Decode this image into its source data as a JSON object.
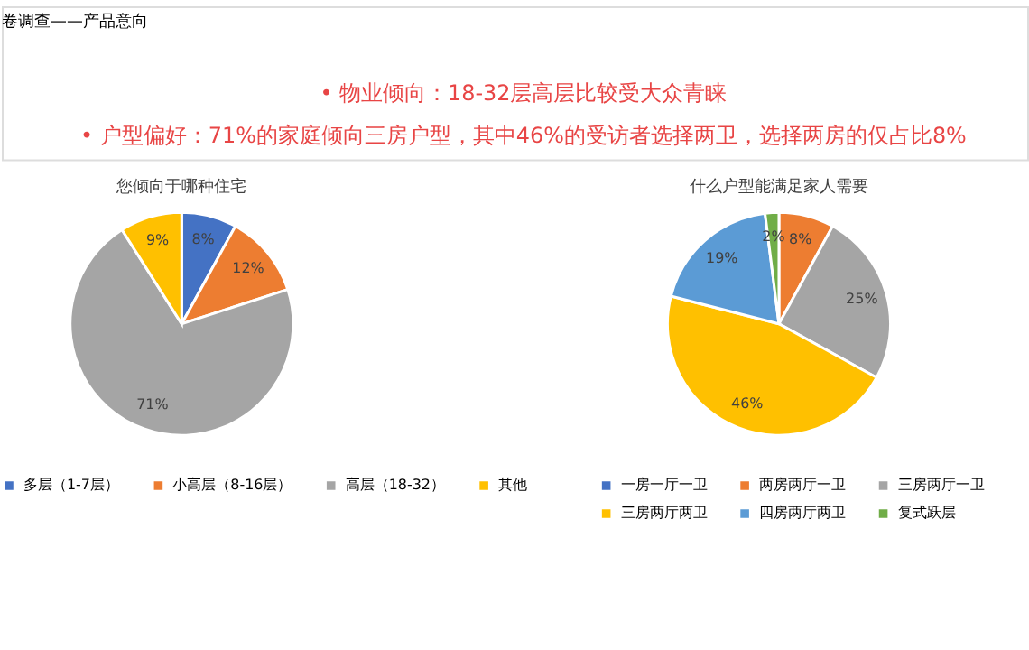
{
  "chart_data": [
    {
      "type": "pie",
      "title": "您倾向于哪种住宅",
      "annotations": [
        "卷调查——产品意向",
        "•  物业倾向：18-32层高层比较受大众青睐",
        "•  户型偏好：71%的家庭倾向三房户型，其中46%的受访者选择两卫，选择两房的仅占比8%"
      ],
      "categories": [
        "多层（1-7层）",
        "小高层（8-16层）",
        "高层（18-32）",
        "其他"
      ],
      "values": [
        8,
        12,
        71,
        9
      ],
      "value_labels": [
        "8%",
        "12%",
        "71%",
        "9%"
      ],
      "colors": [
        "#4472c4",
        "#ed7d31",
        "#a5a5a5",
        "#ffc000"
      ],
      "legend": "bottom"
    },
    {
      "type": "pie",
      "title": "什么户型能满足家人需要",
      "categories": [
        "一房一厅一卫",
        "两房两厅一卫",
        "三房两厅一卫",
        "三房两厅两卫",
        "四房两厅两卫",
        "复式跃层"
      ],
      "values": [
        0,
        8,
        25,
        46,
        19,
        2
      ],
      "value_labels": [
        null,
        "8%",
        "25%",
        "46%",
        "19%",
        "2%"
      ],
      "colors": [
        "#4472c4",
        "#ed7d31",
        "#a5a5a5",
        "#ffc000",
        "#5b9bd5",
        "#70ad47"
      ],
      "legend": "bottom"
    }
  ]
}
